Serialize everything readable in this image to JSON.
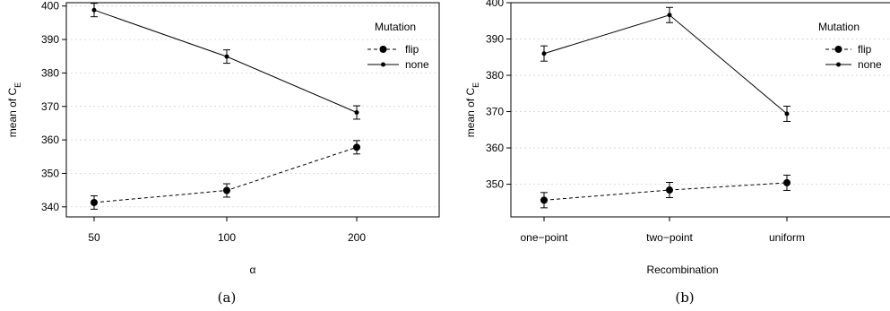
{
  "chart_data": [
    {
      "type": "line",
      "panel_caption": "(a)",
      "xlabel": "α",
      "ylabel_main": "mean of C",
      "ylabel_sub": "E",
      "categories": [
        "50",
        "100",
        "200"
      ],
      "ylim": [
        337,
        401
      ],
      "yticks": [
        340,
        350,
        360,
        370,
        380,
        390,
        400
      ],
      "grid": "horizontal dotted",
      "legend": {
        "title": "Mutation",
        "position": "top-right"
      },
      "series": [
        {
          "name": "flip",
          "style": "dashed",
          "marker": "large-dot",
          "values": [
            341.3,
            344.9,
            357.8
          ],
          "errors": [
            2.0,
            2.0,
            2.0
          ]
        },
        {
          "name": "none",
          "style": "solid",
          "marker": "small-dot",
          "values": [
            398.8,
            384.9,
            368.2
          ],
          "errors": [
            2.0,
            2.0,
            2.0
          ]
        }
      ]
    },
    {
      "type": "line",
      "panel_caption": "(b)",
      "xlabel": "Recombination",
      "ylabel_main": "mean of C",
      "ylabel_sub": "E",
      "categories": [
        "one−point",
        "two−point",
        "uniform"
      ],
      "ylim": [
        341,
        400
      ],
      "yticks": [
        350,
        360,
        370,
        380,
        390,
        400
      ],
      "grid": "horizontal dotted",
      "legend": {
        "title": "Mutation",
        "position": "top-right"
      },
      "series": [
        {
          "name": "flip",
          "style": "dashed",
          "marker": "large-dot",
          "values": [
            345.6,
            348.4,
            350.4
          ],
          "errors": [
            2.1,
            2.1,
            2.1
          ]
        },
        {
          "name": "none",
          "style": "solid",
          "marker": "small-dot",
          "values": [
            386.0,
            396.6,
            369.4
          ],
          "errors": [
            2.1,
            2.1,
            2.1
          ]
        }
      ]
    }
  ]
}
